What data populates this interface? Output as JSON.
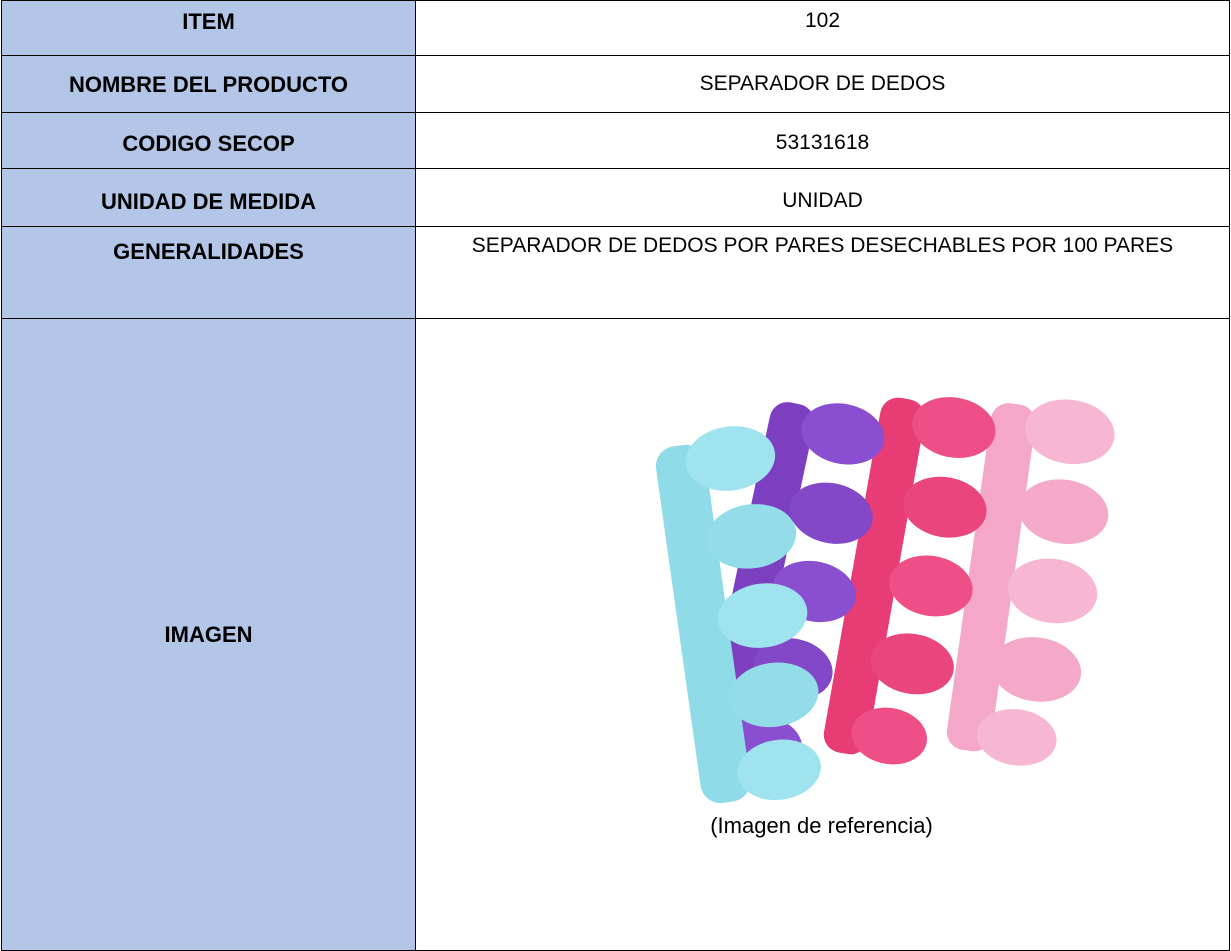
{
  "table": {
    "rows": [
      [
        "ITEM",
        "102"
      ],
      [
        "NOMBRE DEL PRODUCTO",
        "SEPARADOR DE DEDOS"
      ],
      [
        "CODIGO SECOP",
        "53131618"
      ],
      [
        "UNIDAD DE MEDIDA",
        "UNIDAD"
      ],
      [
        "GENERALIDADES",
        "SEPARADOR DE DEDOS POR PARES DESECHABLES POR 100 PARES"
      ],
      [
        "IMAGEN",
        "(Imagen de referencia)"
      ]
    ]
  }
}
